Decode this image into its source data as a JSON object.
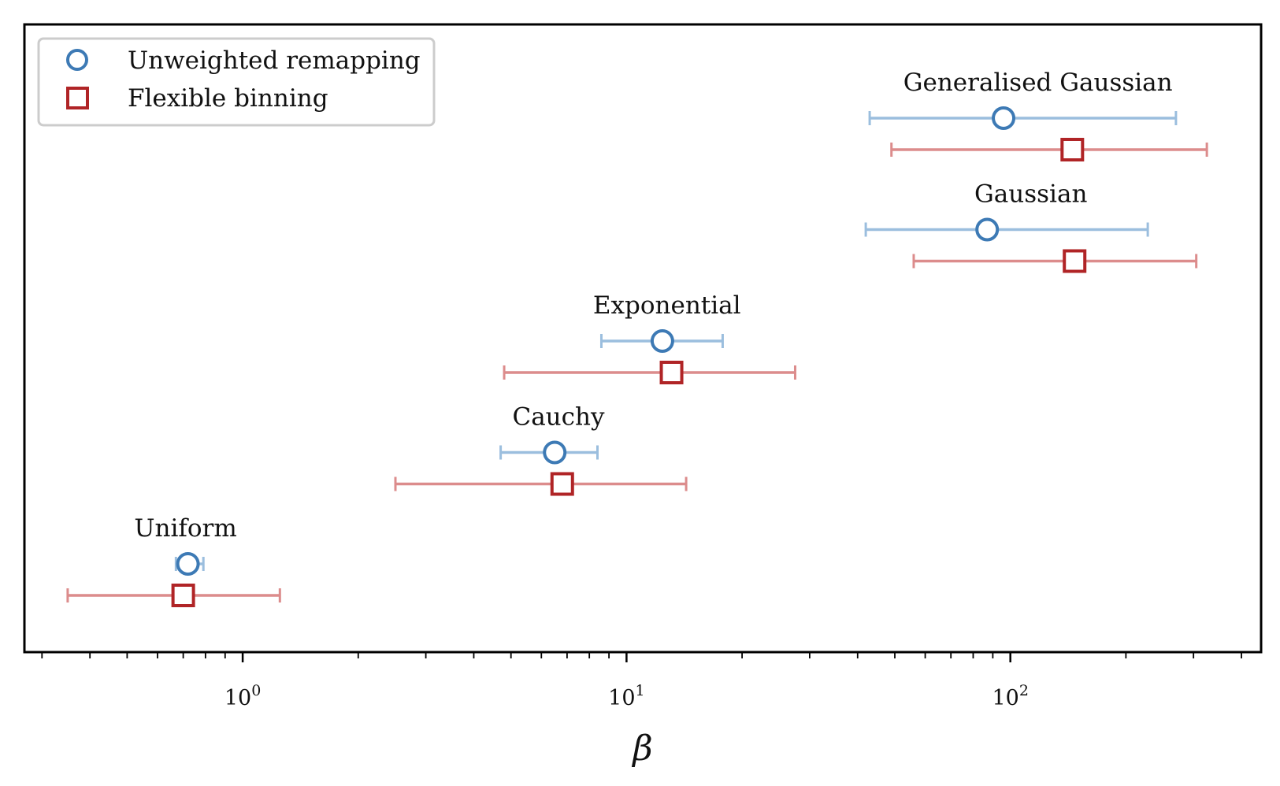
{
  "chart_data": {
    "type": "errorbar",
    "xscale": "log",
    "xlim": [
      0.27,
      450
    ],
    "xlabel": "β",
    "xticks": [
      {
        "value": 1,
        "base": "10",
        "exp": "0"
      },
      {
        "value": 10,
        "base": "10",
        "exp": "1"
      },
      {
        "value": 100,
        "base": "10",
        "exp": "2"
      }
    ],
    "legend": {
      "location": "upper-left",
      "entries": [
        {
          "series": "unweighted",
          "label": "Unweighted remapping"
        },
        {
          "series": "flexible",
          "label": "Flexible binning"
        }
      ]
    },
    "series": [
      {
        "key": "unweighted",
        "name": "Unweighted remapping",
        "marker": "circle",
        "color": "#3d7ab5",
        "bar_color": "#9bbede"
      },
      {
        "key": "flexible",
        "name": "Flexible binning",
        "marker": "square",
        "color": "#b02426",
        "bar_color": "#dc8c8c"
      }
    ],
    "groups": [
      {
        "label": "Generalised Gaussian",
        "unweighted": {
          "value": 96,
          "low": 43,
          "high": 270
        },
        "flexible": {
          "value": 145,
          "low": 49,
          "high": 325
        }
      },
      {
        "label": "Gaussian",
        "unweighted": {
          "value": 87,
          "low": 42,
          "high": 228
        },
        "flexible": {
          "value": 147,
          "low": 56,
          "high": 305
        }
      },
      {
        "label": "Exponential",
        "unweighted": {
          "value": 12.4,
          "low": 8.6,
          "high": 17.8
        },
        "flexible": {
          "value": 13.1,
          "low": 4.8,
          "high": 27.5
        }
      },
      {
        "label": "Cauchy",
        "unweighted": {
          "value": 6.5,
          "low": 4.7,
          "high": 8.4
        },
        "flexible": {
          "value": 6.8,
          "low": 2.5,
          "high": 14.3
        }
      },
      {
        "label": "Uniform",
        "unweighted": {
          "value": 0.72,
          "low": 0.67,
          "high": 0.79
        },
        "flexible": {
          "value": 0.7,
          "low": 0.35,
          "high": 1.25
        }
      }
    ]
  }
}
